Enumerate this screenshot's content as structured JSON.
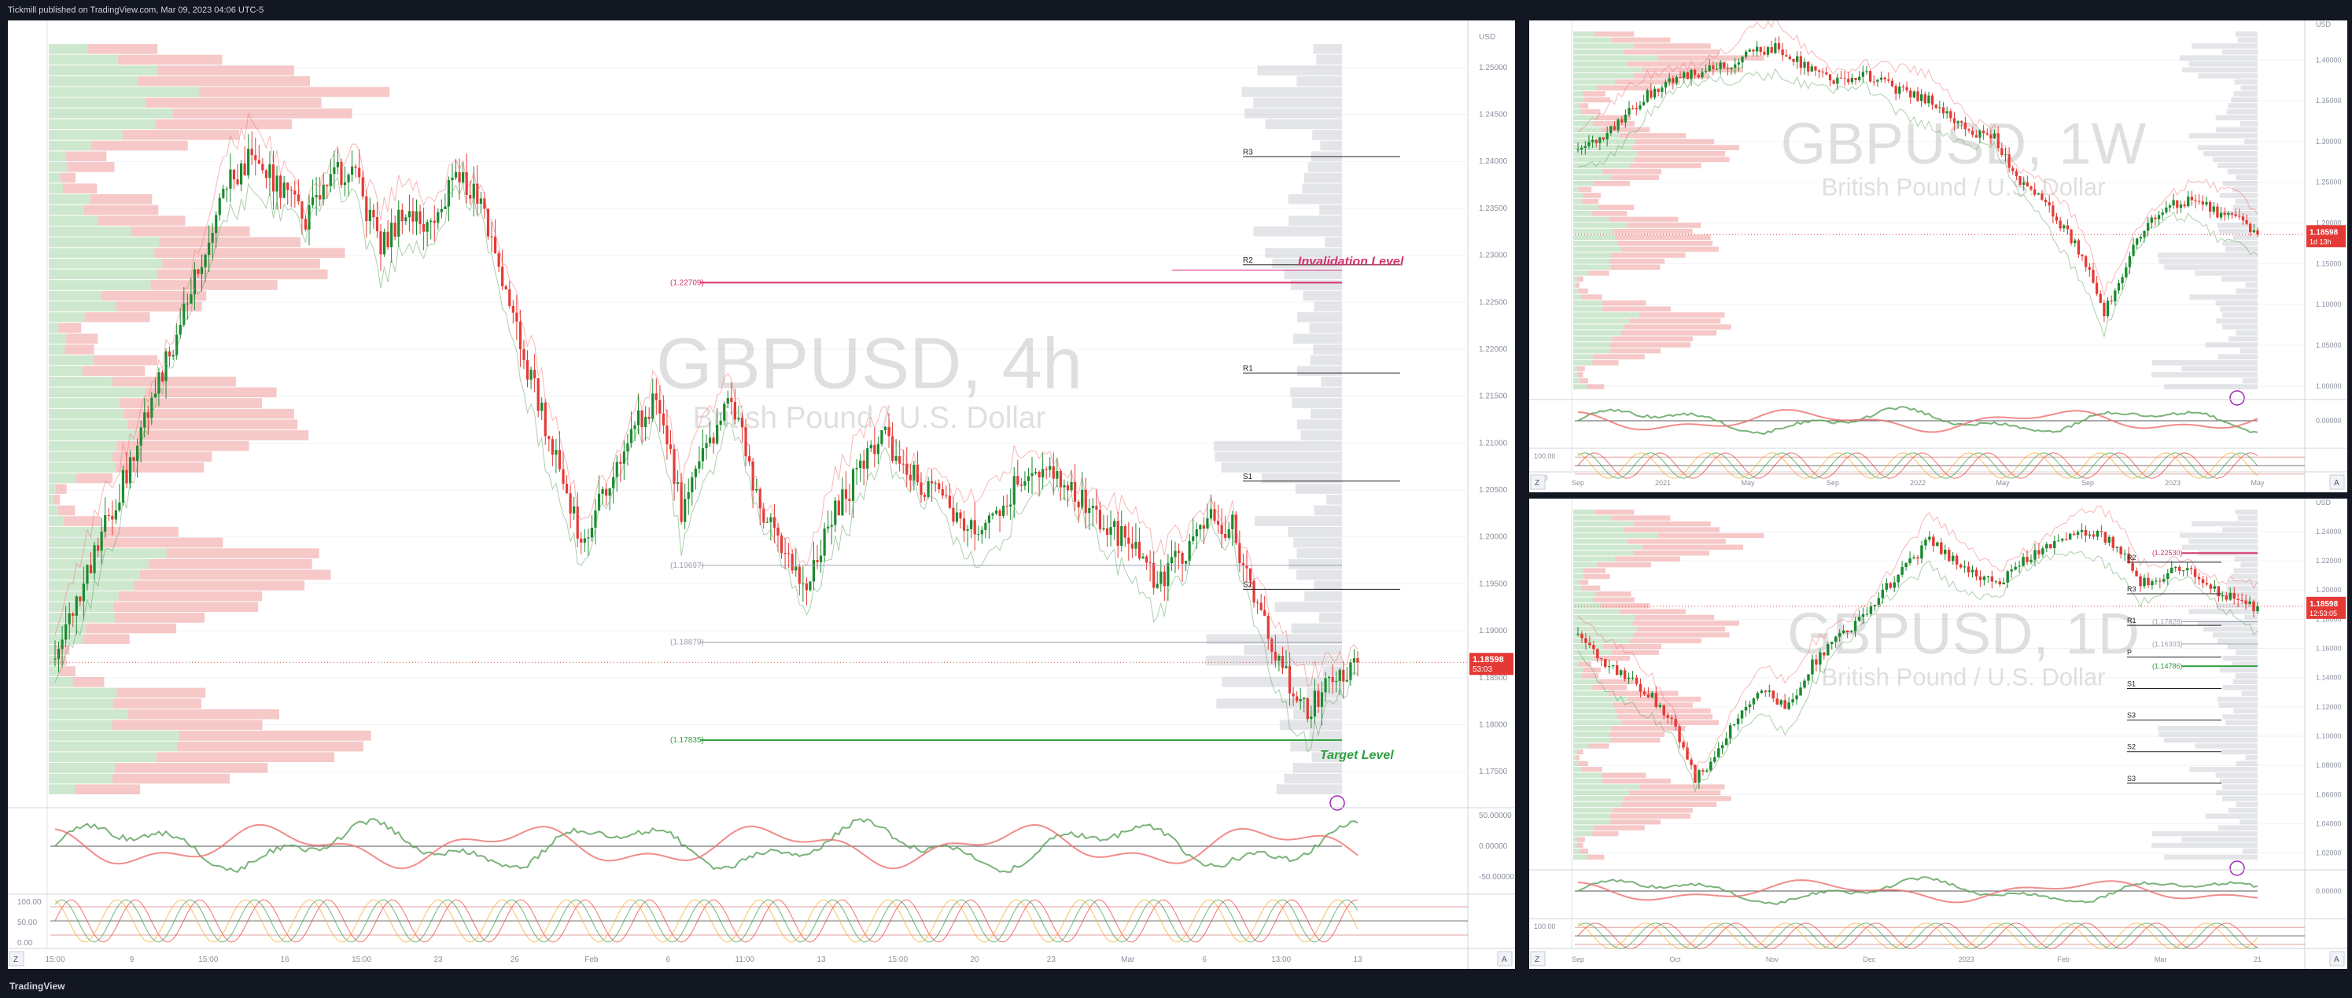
{
  "header": {
    "publisher": "Tickmill published on TradingView.com, Mar 09, 2023 04:06 UTC-5"
  },
  "footer": {
    "brand": "TradingView"
  },
  "colors": {
    "up": "#1b8a2e",
    "down": "#e53935",
    "bg": "#ffffff",
    "frame": "#131722",
    "grid": "#f0f3fa",
    "axis": "#8a8f9c",
    "price": "#e53935",
    "projection": "#2962ff",
    "invalid": "#d6336c",
    "target": "#2e9e3f",
    "osc_green": "#5aa05a",
    "osc_red": "#ef6f6f"
  },
  "icons": {
    "lightning": "lightning-icon",
    "zoom": "magnifier-icon"
  },
  "chart_data": [
    {
      "type": "line",
      "title": "GBPUSD, 4h",
      "subtitle": "British Pound / U.S. Dollar",
      "currency": "USD",
      "price_label": "1.18598",
      "countdown": "53:03",
      "y_ticks": [
        "1.25000",
        "1.24500",
        "1.24000",
        "1.23500",
        "1.23000",
        "1.22500",
        "1.22000",
        "1.21500",
        "1.21000",
        "1.20500",
        "1.20000",
        "1.19500",
        "1.19000",
        "1.18500",
        "1.18000",
        "1.17500"
      ],
      "x_ticks": [
        "15:00",
        "9",
        "15:00",
        "16",
        "15:00",
        "23",
        "26",
        "Feb",
        "6",
        "11:00",
        "13",
        "15:00",
        "20",
        "23",
        "Mar",
        "6",
        "13:00",
        "13"
      ],
      "pivots": [
        "R3",
        "R2",
        "R1",
        "S1",
        "S2"
      ],
      "levels": [
        {
          "label": "(1.22709)",
          "value": 1.22709
        },
        {
          "label": "(1.19697)",
          "value": 1.19697
        },
        {
          "label": "(1.18879)",
          "value": 1.18879
        },
        {
          "label": "(1.17835)",
          "value": 1.17835
        }
      ],
      "annotations": {
        "invalidation": "Invalidation Level",
        "target": "Target  Level"
      },
      "ylim": [
        1.1725,
        1.2525
      ],
      "series": [
        {
          "values": [
            1.187,
            1.1935,
            1.201,
            1.208,
            1.215,
            1.223,
            1.231,
            1.238,
            1.241,
            1.237,
            1.234,
            1.2395,
            1.238,
            1.231,
            1.2345,
            1.233,
            1.2385,
            1.236,
            1.225,
            1.217,
            1.208,
            1.2,
            1.2045,
            1.211,
            1.215,
            1.203,
            1.209,
            1.215,
            1.204,
            1.199,
            1.195,
            1.202,
            1.2065,
            1.211,
            1.207,
            1.205,
            1.202,
            1.201,
            1.204,
            1.208,
            1.206,
            1.204,
            1.201,
            1.199,
            1.195,
            1.198,
            1.202,
            1.201,
            1.192,
            1.186,
            1.1815,
            1.185,
            1.187
          ]
        }
      ],
      "projection": [
        1.186,
        1.192,
        1.18,
        1.205
      ],
      "oscillator_ticks": [
        "50.00000",
        "0.00000",
        "-50.00000"
      ],
      "stoch_ticks": [
        "100.00",
        "50.00",
        "0.00"
      ]
    },
    {
      "type": "line",
      "title": "GBPUSD, 1W",
      "subtitle": "British Pound / U.S. Dollar",
      "currency": "USD",
      "price_label": "1.18598",
      "countdown": "1d 13h",
      "y_ticks": [
        "1.40000",
        "1.35000",
        "1.30000",
        "1.25000",
        "1.20000",
        "1.15000",
        "1.10000",
        "1.05000",
        "1.00000"
      ],
      "x_ticks": [
        "Sep",
        "2021",
        "May",
        "Sep",
        "2022",
        "May",
        "Sep",
        "2023",
        "May"
      ],
      "ylim": [
        0.995,
        1.435
      ],
      "series": [
        {
          "values": [
            1.29,
            1.3,
            1.325,
            1.355,
            1.37,
            1.38,
            1.39,
            1.395,
            1.41,
            1.415,
            1.4,
            1.38,
            1.375,
            1.385,
            1.37,
            1.36,
            1.35,
            1.33,
            1.31,
            1.305,
            1.255,
            1.23,
            1.2,
            1.16,
            1.09,
            1.15,
            1.2,
            1.22,
            1.23,
            1.215,
            1.205,
            1.186
          ]
        }
      ],
      "projection": [
        1.186,
        1.17,
        1.26
      ],
      "oscillator_ticks": [
        "0.00000"
      ],
      "stoch_ticks": [
        "100.00",
        "0.00"
      ]
    },
    {
      "type": "line",
      "title": "GBPUSD, 1D",
      "subtitle": "British Pound / U.S. Dollar",
      "currency": "USD",
      "price_label": "1.18598",
      "countdown": "12:53:05",
      "y_ticks": [
        "1.24000",
        "1.22000",
        "1.20000",
        "1.18000",
        "1.16000",
        "1.14000",
        "1.12000",
        "1.10000",
        "1.08000",
        "1.06000",
        "1.04000",
        "1.02000"
      ],
      "x_ticks": [
        "Sep",
        "Oct",
        "Nov",
        "Dec",
        "2023",
        "Feb",
        "Mar",
        "21"
      ],
      "pivots": [
        "R2",
        "R3",
        "R1",
        "P",
        "S1",
        "S3",
        "S2",
        "S3"
      ],
      "levels": [
        {
          "label": "(1.22530)",
          "value": 1.2253
        },
        {
          "label": "(1.17829)",
          "value": 1.17829
        },
        {
          "label": "(1.16303)",
          "value": 1.16303
        },
        {
          "label": "(1.14786)",
          "value": 1.14786
        }
      ],
      "ylim": [
        1.015,
        1.255
      ],
      "series": [
        {
          "values": [
            1.17,
            1.15,
            1.14,
            1.13,
            1.11,
            1.07,
            1.09,
            1.12,
            1.13,
            1.12,
            1.15,
            1.165,
            1.18,
            1.2,
            1.215,
            1.235,
            1.22,
            1.21,
            1.205,
            1.22,
            1.23,
            1.235,
            1.24,
            1.23,
            1.205,
            1.21,
            1.215,
            1.2,
            1.195,
            1.186
          ]
        }
      ],
      "projection": [
        1.186,
        1.17,
        1.24
      ],
      "oscillator_ticks": [
        "0.00000"
      ],
      "stoch_ticks": [
        "100.00"
      ]
    }
  ]
}
